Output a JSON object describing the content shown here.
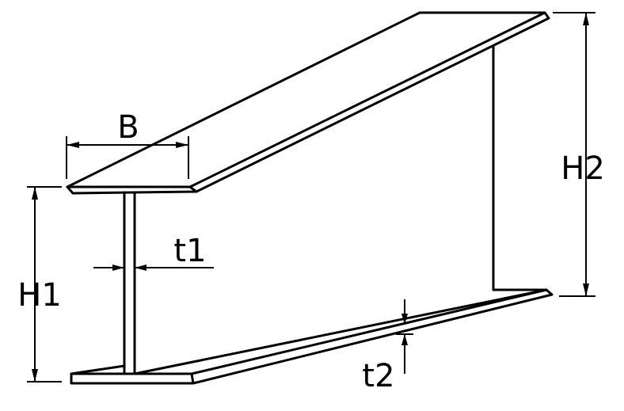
{
  "labels": {
    "B": "B",
    "t1": "t1",
    "H1": "H1",
    "H2": "H2",
    "t2": "t2"
  },
  "colors": {
    "stroke": "#000000",
    "background": "#ffffff"
  }
}
